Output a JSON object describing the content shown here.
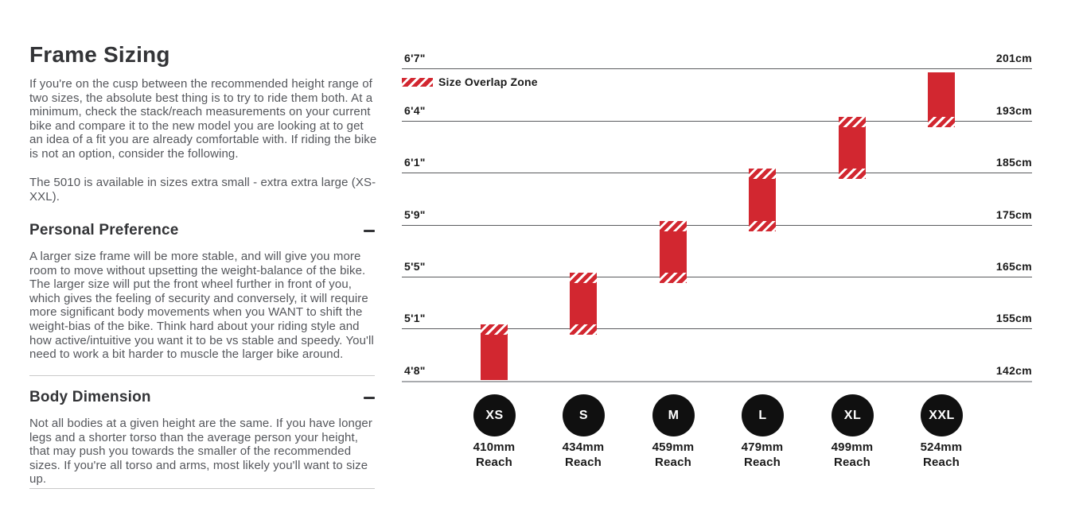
{
  "left_column": {
    "title": "Frame Sizing",
    "intro": "If you're on the cusp between the recommended height range of two sizes, the absolute best thing is to try to ride them both. At a minimum, check the stack/reach measurements on your current bike and compare it to the new model you are looking at to get an idea of a fit you are already comfortable with. If riding the bike is not an option, consider the following.",
    "availability": "The 5010 is available in sizes extra small - extra extra large (XS-XXL).",
    "sections": [
      {
        "heading": "Personal Preference",
        "state_icon": "minus-icon",
        "body": "A larger size frame will be more stable, and will give you more room to move without upsetting the weight-balance of the bike. The larger size will put the front wheel further in front of you, which gives the feeling of security and conversely, it will require more significant body movements when you WANT to shift the weight-bias of the bike. Think hard about your riding style and how active/intuitive you want it to be vs stable and speedy. You'll need to work a bit harder to muscle the larger bike around."
      },
      {
        "heading": "Body Dimension",
        "state_icon": "minus-icon",
        "body": "Not all bodies at a given height are the same. If you have longer legs and a shorter torso than the average person your height, that may push you towards the smaller of the recommended sizes. If you're all torso and arms, most likely you'll want to size up."
      }
    ]
  },
  "chart_data": {
    "type": "bar",
    "title": "",
    "legend": {
      "label": "Size Overlap Zone",
      "swatch": "red-diagonal-hatch"
    },
    "colors": {
      "bar_red": "#d22730",
      "size_circle_black": "#101010"
    },
    "gridlines": [
      {
        "imperial": "6'7\"",
        "metric": "201cm"
      },
      {
        "imperial": "6'4\"",
        "metric": "193cm"
      },
      {
        "imperial": "6'1\"",
        "metric": "185cm"
      },
      {
        "imperial": "5'9\"",
        "metric": "175cm"
      },
      {
        "imperial": "5'5\"",
        "metric": "165cm"
      },
      {
        "imperial": "5'1\"",
        "metric": "155cm"
      },
      {
        "imperial": "4'8\"",
        "metric": "142cm"
      }
    ],
    "sizes": [
      {
        "label": "XS",
        "reach": "410mm",
        "reach_caption": "Reach",
        "height_range_imperial": "4'8\" - 5'1\"",
        "height_range_metric": "142cm - 155cm",
        "overlap_top": true,
        "overlap_bottom": false
      },
      {
        "label": "S",
        "reach": "434mm",
        "reach_caption": "Reach",
        "height_range_imperial": "5'1\" - 5'5\"",
        "height_range_metric": "155cm - 165cm",
        "overlap_top": true,
        "overlap_bottom": true
      },
      {
        "label": "M",
        "reach": "459mm",
        "reach_caption": "Reach",
        "height_range_imperial": "5'5\" - 5'9\"",
        "height_range_metric": "165cm - 175cm",
        "overlap_top": true,
        "overlap_bottom": true
      },
      {
        "label": "L",
        "reach": "479mm",
        "reach_caption": "Reach",
        "height_range_imperial": "5'9\" - 6'1\"",
        "height_range_metric": "175cm - 185cm",
        "overlap_top": true,
        "overlap_bottom": true
      },
      {
        "label": "XL",
        "reach": "499mm",
        "reach_caption": "Reach",
        "height_range_imperial": "6'1\" - 6'4\"",
        "height_range_metric": "185cm - 193cm",
        "overlap_top": true,
        "overlap_bottom": true
      },
      {
        "label": "XXL",
        "reach": "524mm",
        "reach_caption": "Reach",
        "height_range_imperial": "6'4\" - 6'7\"",
        "height_range_metric": "193cm - 201cm",
        "overlap_top": false,
        "overlap_bottom": true
      }
    ],
    "overlap_boundaries": [
      "5'1\"",
      "5'5\"",
      "5'9\"",
      "6'1\"",
      "6'4\""
    ]
  }
}
